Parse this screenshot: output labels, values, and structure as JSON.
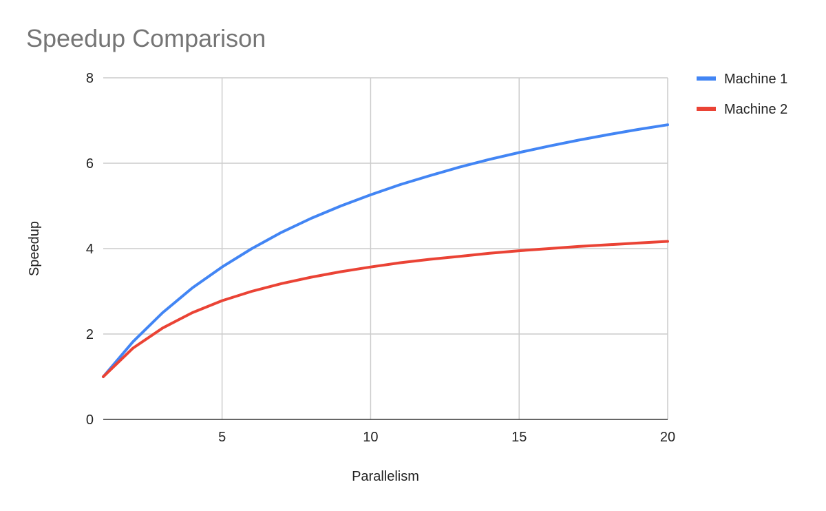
{
  "chart_data": {
    "type": "line",
    "title": "Speedup Comparison",
    "xlabel": "Parallelism",
    "ylabel": "Speedup",
    "xlim": [
      1,
      20
    ],
    "ylim": [
      0,
      8
    ],
    "x_ticks": [
      5,
      10,
      15,
      20
    ],
    "y_ticks": [
      0,
      2,
      4,
      6,
      8
    ],
    "grid": true,
    "legend": "right",
    "x": [
      1,
      2,
      3,
      4,
      5,
      6,
      7,
      8,
      9,
      10,
      11,
      12,
      13,
      14,
      15,
      16,
      17,
      18,
      19,
      20
    ],
    "series": [
      {
        "name": "Machine 1",
        "color": "#4285f4",
        "values": [
          1.0,
          1.82,
          2.5,
          3.08,
          3.57,
          4.0,
          4.38,
          4.71,
          5.0,
          5.26,
          5.5,
          5.71,
          5.91,
          6.09,
          6.25,
          6.4,
          6.54,
          6.67,
          6.79,
          6.9
        ]
      },
      {
        "name": "Machine 2",
        "color": "#ea4335",
        "values": [
          1.0,
          1.67,
          2.14,
          2.5,
          2.78,
          3.0,
          3.18,
          3.33,
          3.46,
          3.57,
          3.67,
          3.75,
          3.82,
          3.89,
          3.95,
          4.0,
          4.05,
          4.09,
          4.13,
          4.17
        ]
      }
    ]
  }
}
